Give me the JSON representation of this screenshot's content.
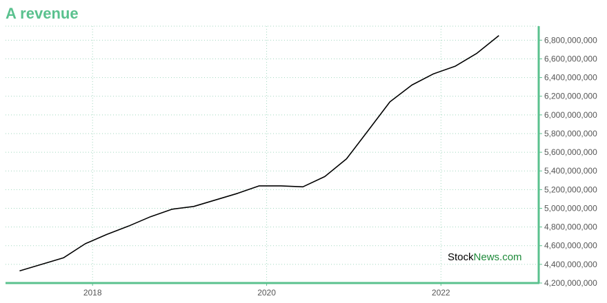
{
  "chart_data": {
    "type": "line",
    "title": "A revenue",
    "xlabel": "",
    "ylabel": "",
    "x_ticks": [
      "2018",
      "2020",
      "2022"
    ],
    "y_ticks": [
      "4,200,000,000",
      "4,400,000,000",
      "4,600,000,000",
      "4,800,000,000",
      "5,000,000,000",
      "5,200,000,000",
      "5,400,000,000",
      "5,600,000,000",
      "5,800,000,000",
      "6,000,000,000",
      "6,200,000,000",
      "6,400,000,000",
      "6,600,000,000",
      "6,800,000,000"
    ],
    "xlim": [
      "2017-01-01",
      "2023-02-15"
    ],
    "ylim": [
      4200000000,
      6950000000
    ],
    "grid": true,
    "y_axis_side": "right",
    "colors": {
      "line": "#000000",
      "accent": "#5ac18e",
      "grid": "#9fd6bd"
    },
    "series": [
      {
        "x": [
          "2017-03-01",
          "2017-06-01",
          "2017-09-01",
          "2017-12-01",
          "2018-03-01",
          "2018-06-01",
          "2018-09-01",
          "2018-12-01",
          "2019-03-01",
          "2019-06-01",
          "2019-09-01",
          "2019-12-01",
          "2020-03-01",
          "2020-06-01",
          "2020-09-01",
          "2020-12-01",
          "2021-03-01",
          "2021-06-01",
          "2021-09-01",
          "2021-12-01",
          "2022-03-01",
          "2022-06-01",
          "2022-09-01"
        ],
        "values": [
          4330000000,
          4400000000,
          4470000000,
          4620000000,
          4720000000,
          4810000000,
          4910000000,
          4990000000,
          5020000000,
          5090000000,
          5160000000,
          5240000000,
          5240000000,
          5230000000,
          5340000000,
          5530000000,
          5830000000,
          6140000000,
          6320000000,
          6440000000,
          6520000000,
          6660000000,
          6850000000
        ]
      }
    ]
  },
  "watermark": {
    "part1": "Stock",
    "part2": "News.com"
  }
}
